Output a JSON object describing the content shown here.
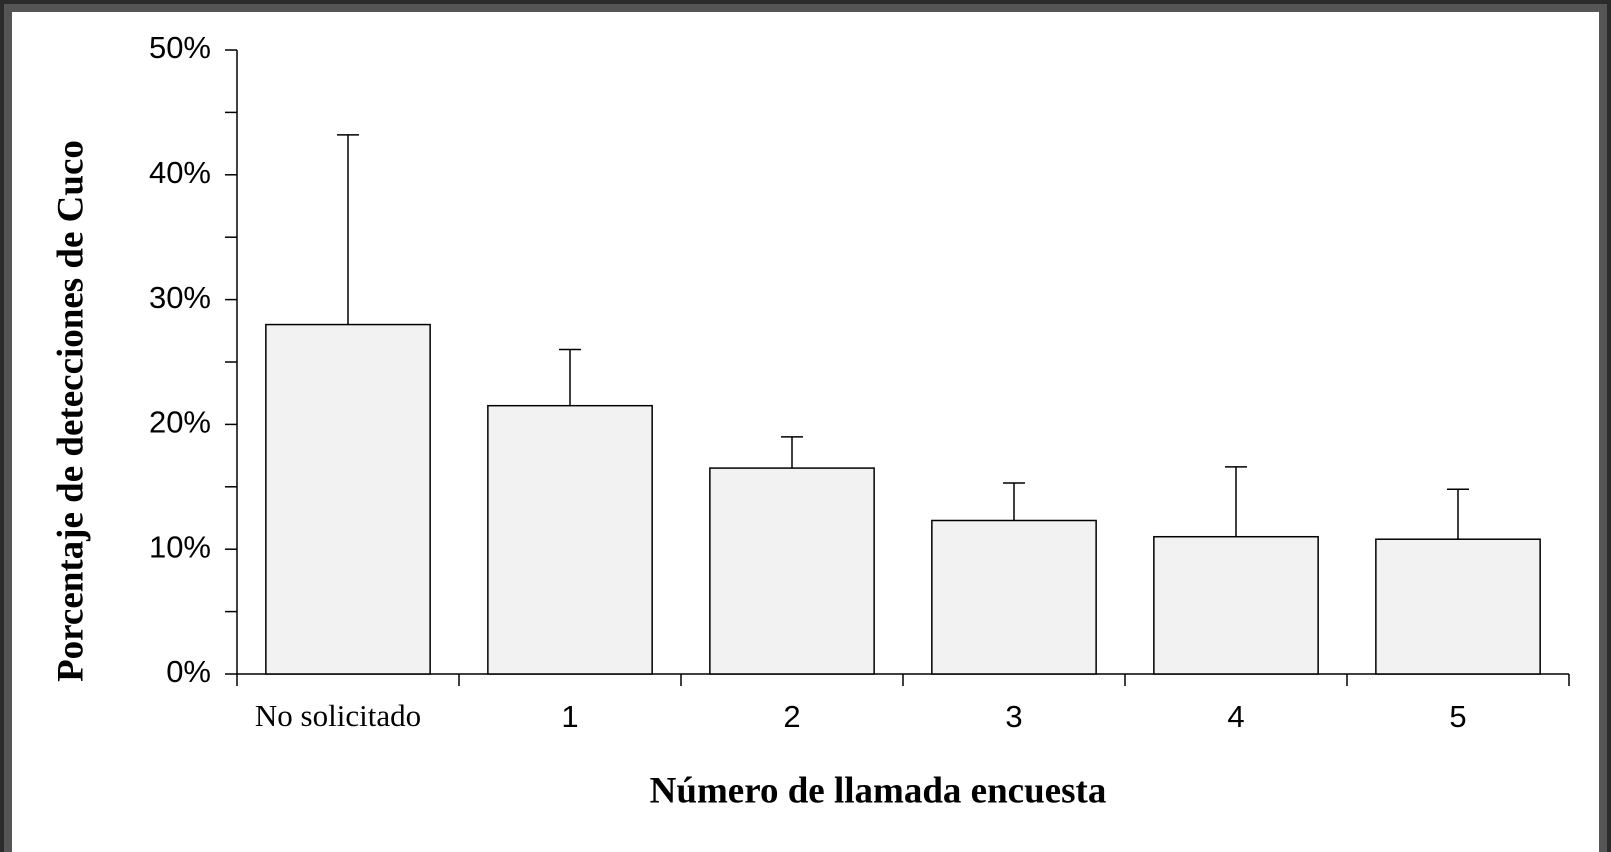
{
  "chart_data": {
    "type": "bar",
    "xlabel": "Número de llamada encuesta",
    "ylabel": "Porcentaje de detecciones de Cuco",
    "categories": [
      "No solicitado",
      "1",
      "2",
      "3",
      "4",
      "5"
    ],
    "values": [
      28.0,
      21.5,
      16.5,
      12.3,
      11.0,
      10.8
    ],
    "errors": [
      15.2,
      4.5,
      2.5,
      3.0,
      5.6,
      4.0
    ],
    "color": "#f2f2f2",
    "ylim": [
      0,
      50
    ],
    "yticks": [
      {
        "value": 0,
        "label": "0%"
      },
      {
        "value": 10,
        "label": "10%"
      },
      {
        "value": 20,
        "label": "20%"
      },
      {
        "value": 30,
        "label": "30%"
      },
      {
        "value": 40,
        "label": "40%"
      },
      {
        "value": 50,
        "label": "50%"
      }
    ],
    "yminorticks": [
      5,
      15,
      25,
      35,
      45
    ]
  }
}
